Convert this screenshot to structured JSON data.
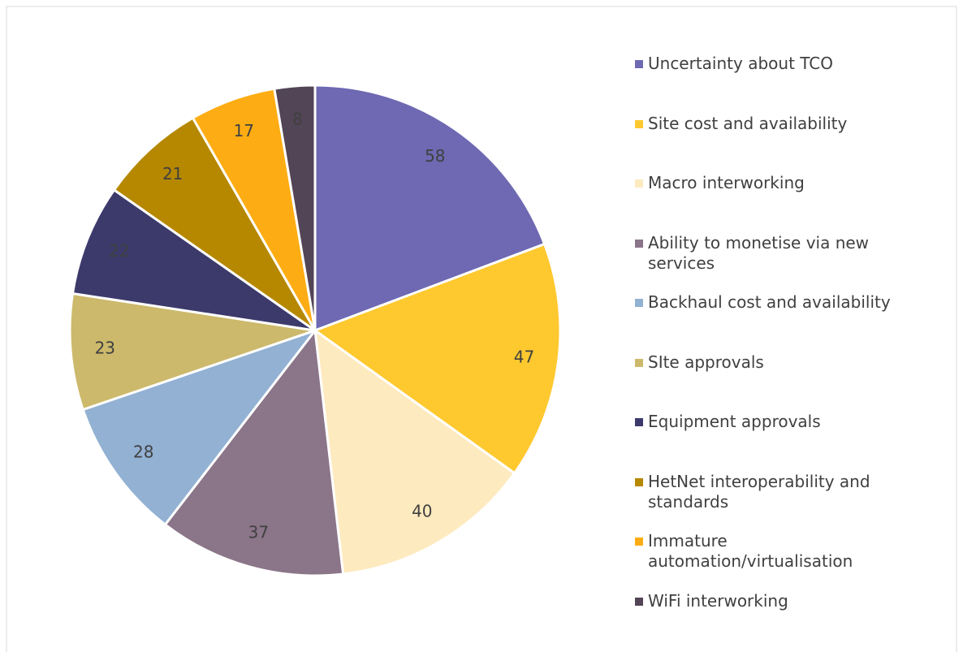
{
  "chart_data": {
    "type": "pie",
    "categories": [
      "Uncertainty about TCO",
      "Site cost and availability",
      "Macro interworking",
      "Ability to monetise via new services",
      "Backhaul cost and availability",
      "SIte approvals",
      "Equipment approvals",
      "HetNet interoperability and standards",
      "Immature automation/virtualisation",
      "WiFi interworking"
    ],
    "values": [
      58,
      47,
      40,
      37,
      28,
      23,
      22,
      21,
      17,
      8
    ],
    "colors": [
      "#6e69b2",
      "#fec82f",
      "#feeabf",
      "#8b7589",
      "#92b1d3",
      "#ccb96b",
      "#3c3a6b",
      "#b68800",
      "#fdad13",
      "#524556"
    ],
    "legend": "right"
  }
}
